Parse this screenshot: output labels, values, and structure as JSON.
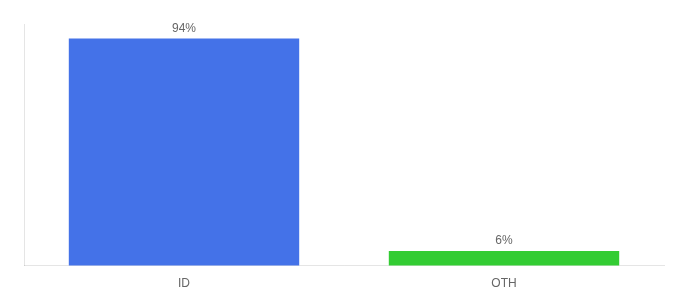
{
  "chart_data": {
    "type": "bar",
    "categories": [
      "ID",
      "OTH"
    ],
    "values": [
      94,
      6
    ],
    "value_labels": [
      "94%",
      "6%"
    ],
    "data_labels": true,
    "colors": [
      "#4472e8",
      "#33cc33"
    ],
    "ylim": [
      0,
      100
    ],
    "grid": false,
    "tick_labels": "x"
  }
}
